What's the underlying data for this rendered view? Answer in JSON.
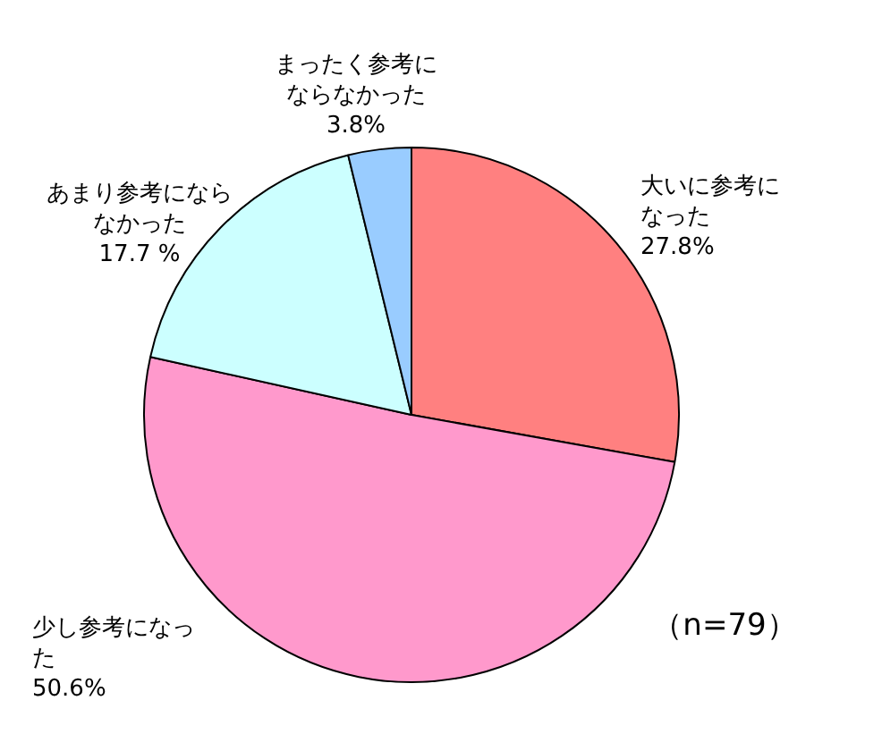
{
  "chart_data": {
    "type": "pie",
    "categories": [
      "大いに参考になった",
      "少し参考になった",
      "あまり参考にならなかった",
      "まったく参考にならなかった"
    ],
    "values": [
      27.8,
      50.6,
      17.7,
      3.8
    ],
    "value_labels": [
      "27.8%",
      "50.6%",
      "17.7 %",
      "3.8%"
    ],
    "colors": [
      "#ff8080",
      "#ff99cc",
      "#ccffff",
      "#99ccff"
    ],
    "annotations": [
      "（n=79）"
    ],
    "legend": false
  }
}
